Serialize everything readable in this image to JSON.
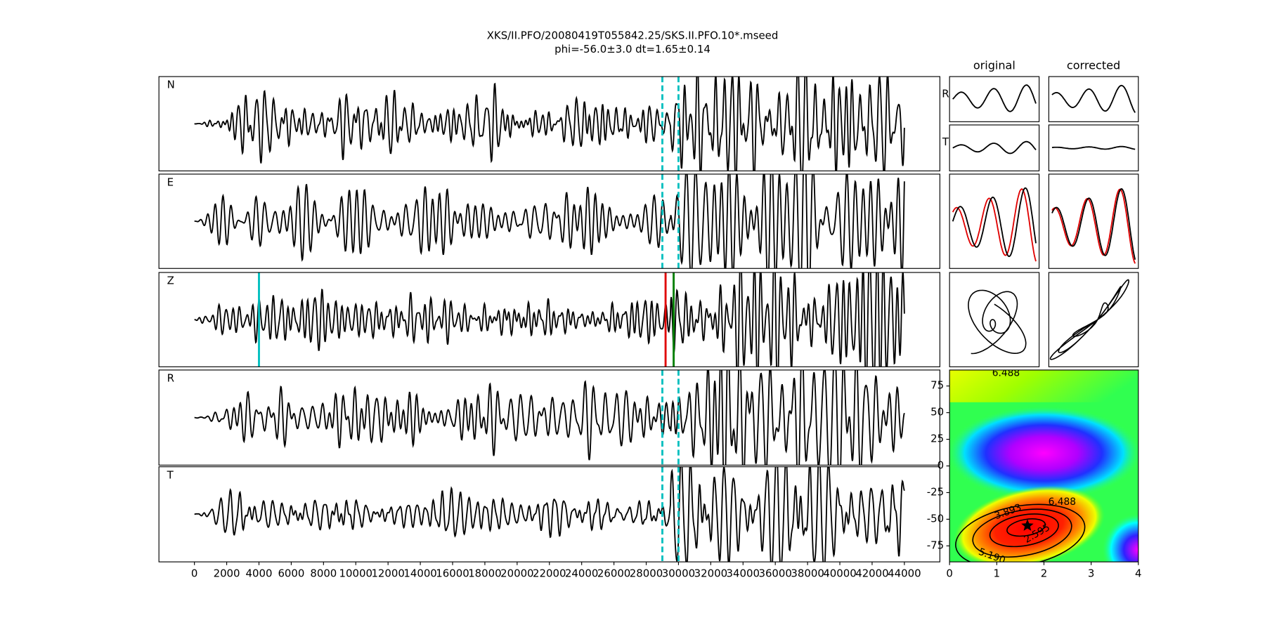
{
  "title": "XKS/II.PFO/20080419T055842.25/SKS.II.PFO.10*.mseed",
  "subtitle": "phi=-56.0±3.0 dt=1.65±0.14",
  "chart_data": [
    {
      "type": "waveform",
      "panels": [
        "N",
        "E",
        "Z",
        "R",
        "T"
      ],
      "xlim": [
        -2200,
        46200
      ],
      "xticks": [
        0,
        2000,
        4000,
        6000,
        8000,
        10000,
        12000,
        14000,
        16000,
        18000,
        20000,
        22000,
        24000,
        26000,
        28000,
        30000,
        32000,
        34000,
        36000,
        38000,
        40000,
        42000,
        44000
      ],
      "window": {
        "values": [
          29000,
          30000
        ],
        "color": "#00bfbf"
      },
      "picks": {
        "values": [
          4000,
          29200,
          29700
        ],
        "colors": [
          "#00bfbf",
          "#e00000",
          "#008000"
        ]
      }
    },
    {
      "type": "particle-motion",
      "columns": [
        "original",
        "corrected"
      ],
      "rows": [
        "R",
        "T"
      ]
    },
    {
      "type": "contour",
      "xlim": [
        0,
        4
      ],
      "xticks": [
        0,
        1,
        2,
        3,
        4
      ],
      "ylim": [
        -90,
        90
      ],
      "yticks": [
        -75,
        -50,
        -25,
        0,
        25,
        50,
        75
      ],
      "levels": [
        {
          "value": 2.595,
          "label": "2.595"
        },
        {
          "value": 3.893,
          "label": "3.893"
        },
        {
          "value": 5.19,
          "label": "5.190"
        },
        {
          "value": 6.488,
          "label": "6.488"
        }
      ],
      "best": {
        "x": 1.65,
        "y": -56.0
      }
    }
  ]
}
